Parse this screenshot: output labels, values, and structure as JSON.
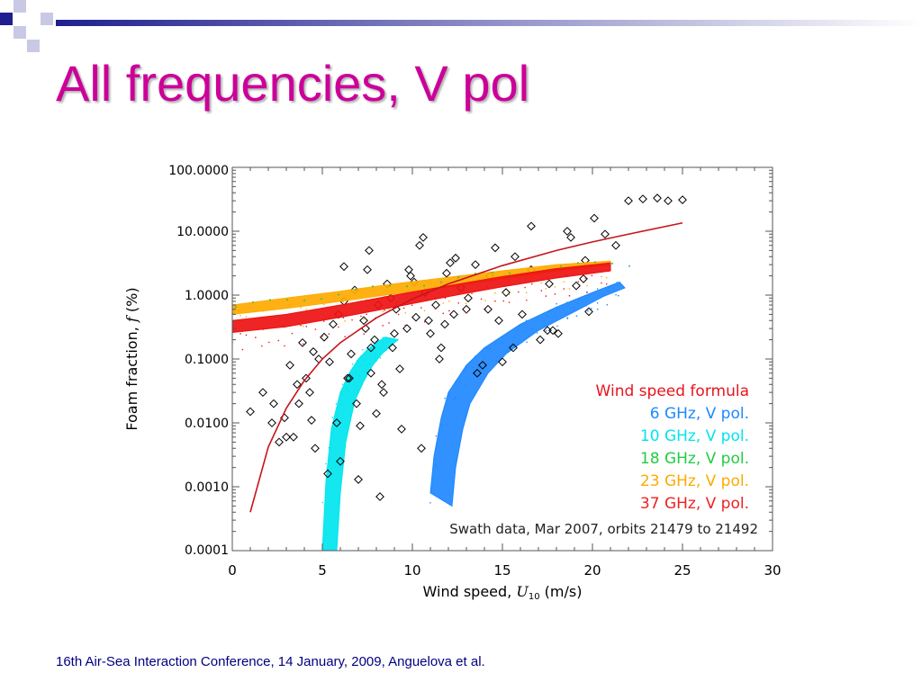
{
  "slide": {
    "title": "All frequencies, V pol",
    "footer": "16th Air-Sea Interaction Conference, 14 January, 2009, Anguelova et al.",
    "title_color": "#cc0099",
    "footer_color": "#000080",
    "decoration_color": "#1f1f8f"
  },
  "chart_data": {
    "type": "scatter",
    "title": "",
    "xlabel_prefix": "Wind speed,",
    "xlabel_var": "U",
    "xlabel_sub": "10",
    "xlabel_suffix": "(m/s)",
    "ylabel_prefix": "Foam fraction,",
    "ylabel_var": "f",
    "ylabel_suffix": "(%)",
    "xlim": [
      0,
      30
    ],
    "ylim": [
      0.0001,
      100
    ],
    "yscale": "log",
    "grid": false,
    "x_ticks": [
      "0",
      "5",
      "10",
      "15",
      "20",
      "25",
      "30"
    ],
    "x_tick_values": [
      0,
      5,
      10,
      15,
      20,
      25,
      30
    ],
    "y_ticks": [
      "100.0000",
      "10.0000",
      "1.0000",
      "0.1000",
      "0.0100",
      "0.0010",
      "0.0001"
    ],
    "y_tick_values": [
      100,
      10,
      1,
      0.1,
      0.01,
      0.001,
      0.0001
    ],
    "annotation": "Swath data, Mar 2007, orbits 21479 to 21492",
    "legend_position": "lower-right",
    "legend": [
      {
        "label": "Wind speed formula",
        "color": "#e8141c"
      },
      {
        "label": "6 GHz, V pol.",
        "color": "#1e88ff"
      },
      {
        "label": "10 GHz, V pol.",
        "color": "#00e5ee"
      },
      {
        "label": "18 GHz, V pol.",
        "color": "#22cc44"
      },
      {
        "label": "23 GHz, V pol.",
        "color": "#ffaa00"
      },
      {
        "label": "37 GHz, V pol.",
        "color": "#ee2222"
      }
    ],
    "series": [
      {
        "name": "Wind speed formula",
        "style": "line",
        "color": "#c8141c",
        "x": [
          1,
          2,
          3,
          4,
          5,
          6,
          8,
          10,
          12,
          15,
          18,
          20,
          22,
          25
        ],
        "y": [
          0.0004,
          0.0042,
          0.017,
          0.046,
          0.1,
          0.18,
          0.44,
          0.87,
          1.5,
          2.9,
          5.0,
          6.8,
          9.0,
          13.5
        ]
      },
      {
        "name": "10 GHz, V pol.",
        "style": "band",
        "color": "#00e5ee",
        "x": [
          5.0,
          5.2,
          5.5,
          6.0,
          6.5,
          7.0,
          7.5,
          8.0,
          8.5
        ],
        "y_low": [
          0.0001,
          0.0012,
          0.008,
          0.03,
          0.06,
          0.1,
          0.14,
          0.18,
          0.22
        ],
        "y_high": [
          0.0001,
          0.0008,
          0.005,
          0.022,
          0.045,
          0.08,
          0.12,
          0.16,
          0.2
        ],
        "x_high": [
          5.8,
          6.0,
          6.3,
          6.8,
          7.3,
          7.8,
          8.3,
          8.8,
          9.2
        ]
      },
      {
        "name": "6 GHz, V pol.",
        "style": "band",
        "color": "#1e88ff",
        "x": [
          11.0,
          11.2,
          11.6,
          12.0,
          13.0,
          14.0,
          16.0,
          18.0,
          20.0,
          21.5
        ],
        "y_low": [
          0.0008,
          0.003,
          0.012,
          0.03,
          0.08,
          0.15,
          0.35,
          0.65,
          1.1,
          1.6
        ],
        "y_high": [
          0.0005,
          0.002,
          0.008,
          0.02,
          0.06,
          0.12,
          0.28,
          0.55,
          0.95,
          1.3
        ],
        "x_high": [
          12.2,
          12.4,
          12.8,
          13.2,
          14.2,
          15.2,
          17.0,
          19.0,
          20.6,
          21.8
        ]
      },
      {
        "name": "23 GHz, V pol.",
        "style": "band",
        "color": "#ffaa00",
        "x": [
          0,
          3,
          6,
          9,
          12,
          15,
          18,
          21
        ],
        "y_low": [
          0.5,
          0.62,
          0.8,
          1.05,
          1.35,
          1.8,
          2.4,
          3.0
        ],
        "y_high": [
          0.7,
          0.9,
          1.15,
          1.5,
          1.9,
          2.4,
          3.0,
          3.4
        ]
      },
      {
        "name": "37 GHz, V pol.",
        "style": "band",
        "color": "#ee1111",
        "x": [
          0,
          3,
          6,
          9,
          12,
          15,
          18,
          21
        ],
        "y_low": [
          0.26,
          0.32,
          0.45,
          0.65,
          0.95,
          1.35,
          1.85,
          2.4
        ],
        "y_high": [
          0.4,
          0.5,
          0.7,
          1.0,
          1.4,
          1.95,
          2.6,
          3.2
        ]
      },
      {
        "name": "Swath data",
        "style": "diamond",
        "color": "#000000",
        "x": [
          1.0,
          1.7,
          2.2,
          2.6,
          2.9,
          3.2,
          3.4,
          3.7,
          3.9,
          4.1,
          4.4,
          4.6,
          4.8,
          5.1,
          5.3,
          5.6,
          5.9,
          6.2,
          6.4,
          6.6,
          6.8,
          7.1,
          7.3,
          7.5,
          7.7,
          7.9,
          8.1,
          8.4,
          8.6,
          8.9,
          9.1,
          9.4,
          9.7,
          9.9,
          10.2,
          10.4,
          10.7,
          11.0,
          11.3,
          11.6,
          11.9,
          12.3,
          12.7,
          13.1,
          13.5,
          13.9,
          14.3,
          14.8,
          15.2,
          15.7,
          16.1,
          16.6,
          17.1,
          17.6,
          18.1,
          18.6,
          19.1,
          19.6,
          20.1,
          20.7,
          21.3,
          22.0,
          22.8,
          23.6,
          24.2,
          25.0,
          6.2,
          7.6,
          8.3,
          9.8,
          10.6,
          11.8,
          12.4,
          13.6,
          14.6,
          15.6,
          16.6,
          17.8,
          18.8,
          19.8,
          6.9,
          7.4,
          8.0,
          8.8,
          9.3,
          10.1,
          10.9,
          11.5,
          12.1,
          13.0,
          2.3,
          3.0,
          3.6,
          4.5,
          5.4,
          6.0,
          7.0,
          8.2,
          9.0,
          10.5,
          15.0,
          17.5,
          19.5,
          14.2,
          4.3,
          7.7,
          5.8,
          6.5
        ],
        "y": [
          0.015,
          0.03,
          0.01,
          0.005,
          0.012,
          0.08,
          0.006,
          0.02,
          0.18,
          0.05,
          0.011,
          0.004,
          0.1,
          0.22,
          0.0016,
          0.35,
          0.5,
          2.8,
          0.05,
          0.12,
          1.2,
          0.009,
          0.4,
          2.5,
          0.06,
          0.2,
          0.7,
          0.03,
          1.5,
          0.15,
          0.6,
          0.008,
          0.3,
          2.0,
          0.45,
          6.0,
          1.1,
          0.25,
          0.7,
          0.15,
          2.2,
          0.5,
          1.3,
          0.9,
          3.0,
          0.08,
          2.0,
          0.4,
          1.1,
          4.0,
          0.5,
          2.5,
          0.2,
          1.5,
          0.25,
          10.0,
          1.4,
          3.5,
          16.0,
          9.0,
          6.0,
          30.0,
          32.0,
          33.0,
          30.0,
          31.0,
          0.8,
          5.0,
          0.04,
          2.5,
          8.0,
          0.35,
          3.8,
          0.06,
          5.5,
          0.15,
          12.0,
          0.28,
          8.0,
          0.55,
          0.02,
          0.3,
          0.014,
          0.9,
          0.07,
          1.6,
          0.4,
          0.1,
          3.2,
          0.6,
          0.02,
          0.006,
          0.04,
          0.13,
          0.09,
          0.0025,
          0.0013,
          0.0007,
          0.25,
          0.004,
          0.09,
          0.28,
          1.8,
          0.6,
          0.03,
          0.15,
          0.01,
          0.05
        ]
      }
    ]
  }
}
